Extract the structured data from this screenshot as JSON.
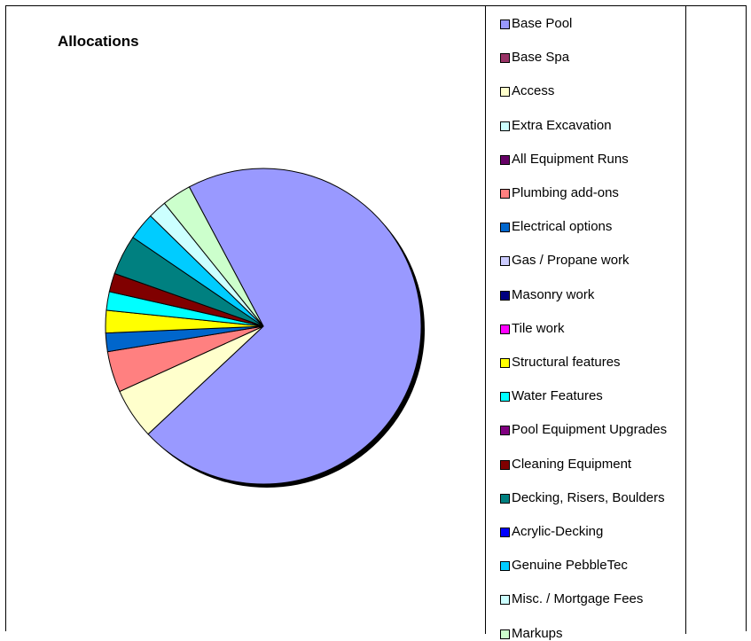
{
  "chart_data": {
    "type": "pie",
    "title": "Allocations",
    "categories": [
      "Base Pool",
      "Base Spa",
      "Access",
      "Extra Excavation",
      "All Equipment Runs",
      "Plumbing add-ons",
      "Electrical options",
      "Gas / Propane work",
      "Masonry work",
      "Tile work",
      "Structural features",
      "Water Features",
      "Pool Equipment Upgrades",
      "Cleaning Equipment",
      "Decking, Risers, Boulders",
      "Acrylic-Decking",
      "Genuine PebbleTec",
      "Misc. / Mortgage Fees",
      "Markups"
    ],
    "values": [
      70.8,
      0,
      5.2,
      0,
      0,
      4.2,
      1.9,
      0,
      0,
      0,
      2.3,
      1.9,
      0,
      1.9,
      4.1,
      0,
      2.8,
      1.9,
      3.0
    ],
    "colors": [
      "#9999FF",
      "#993366",
      "#FFFFCC",
      "#CCFFFF",
      "#660066",
      "#FF8080",
      "#0066CC",
      "#CCCCFF",
      "#000080",
      "#FF00FF",
      "#FFFF00",
      "#00FFFF",
      "#800080",
      "#800000",
      "#008080",
      "#0000FF",
      "#00CCFF",
      "#CCFFFF",
      "#CCFFCC"
    ],
    "legend_position": "right"
  }
}
